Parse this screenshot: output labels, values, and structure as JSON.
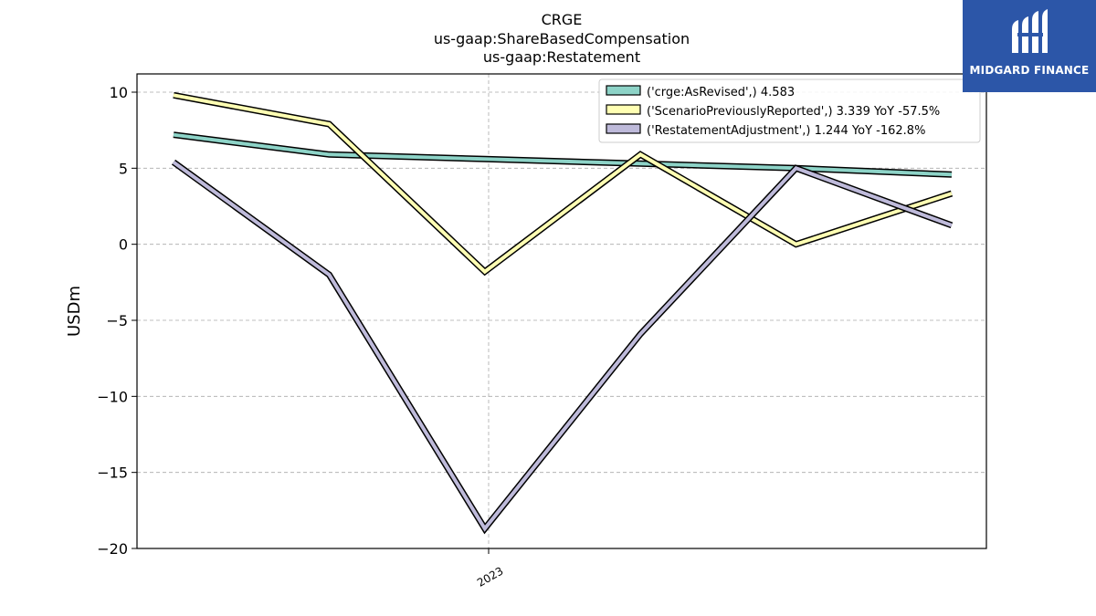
{
  "chart_data": {
    "type": "line",
    "title": "CRGE",
    "subtitle_lines": [
      "us-gaap:ShareBasedCompensation",
      "us-gaap:Restatement"
    ],
    "ylabel": "USDm",
    "xlabel": "",
    "ylim": [
      -20,
      11.2
    ],
    "yticks": [
      10,
      5,
      0,
      -5,
      -10,
      -15,
      -20
    ],
    "ytick_labels": [
      "10",
      "5",
      "0",
      "−5",
      "−10",
      "−15",
      "−20"
    ],
    "x_tick_label": "2023",
    "grid": true,
    "legend_position": "top-right",
    "x": [
      0,
      1,
      2,
      3,
      4,
      5
    ],
    "series": [
      {
        "name": "('crge:AsRevised',) 4.583",
        "color": "#8dd3c7",
        "values": [
          7.2,
          5.9,
          5.6,
          5.3,
          5.0,
          4.583
        ]
      },
      {
        "name": "('ScenarioPreviouslyReported',) 3.339 YoY -57.5%",
        "color": "#ffffb3",
        "values": [
          9.8,
          7.9,
          -1.8,
          5.9,
          0.0,
          3.339
        ]
      },
      {
        "name": "('RestatementAdjustment',) 1.244 YoY -162.8%",
        "color": "#bebada",
        "values": [
          5.4,
          -2.0,
          -18.7,
          -5.9,
          5.0,
          1.244
        ]
      }
    ]
  },
  "brand": {
    "name": "MIDGARD FINANCE",
    "color": "#2c56a8"
  }
}
